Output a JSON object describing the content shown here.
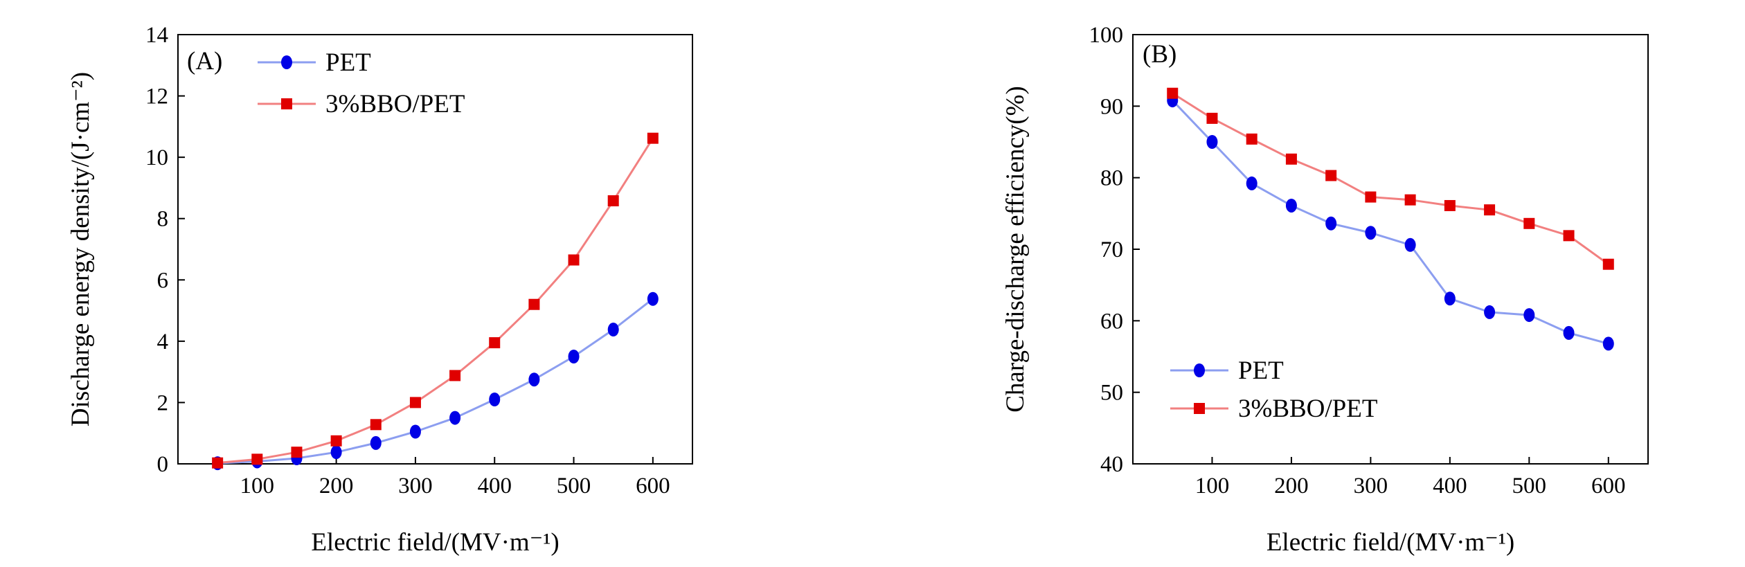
{
  "chart_data": [
    {
      "type": "line",
      "panel_tag": "(A)",
      "xlabel": "Electric field/(MV·m⁻¹)",
      "ylabel": "Discharge energy density/(J·cm⁻²)",
      "xlim": [
        0,
        650
      ],
      "ylim": [
        0,
        14
      ],
      "xticks": [
        100,
        200,
        300,
        400,
        500,
        600
      ],
      "yticks": [
        0,
        2,
        4,
        6,
        8,
        10,
        12,
        14
      ],
      "grid": false,
      "legend": "top-left",
      "series": [
        {
          "name": "PET",
          "color": "#8c9ef0",
          "marker": "circle",
          "marker_color": "#0000e6",
          "x": [
            50,
            100,
            150,
            200,
            250,
            300,
            350,
            400,
            450,
            500,
            550,
            600
          ],
          "y": [
            0.02,
            0.08,
            0.18,
            0.38,
            0.68,
            1.05,
            1.5,
            2.1,
            2.75,
            3.5,
            4.38,
            5.38
          ]
        },
        {
          "name": "3%BBO/PET",
          "color": "#f28080",
          "marker": "square",
          "marker_color": "#e00000",
          "x": [
            50,
            100,
            150,
            200,
            250,
            300,
            350,
            400,
            450,
            500,
            550,
            600
          ],
          "y": [
            0.03,
            0.15,
            0.38,
            0.75,
            1.28,
            2.0,
            2.88,
            3.95,
            5.2,
            6.65,
            8.58,
            10.62
          ]
        }
      ]
    },
    {
      "type": "line",
      "panel_tag": "(B)",
      "xlabel": "Electric field/(MV·m⁻¹)",
      "ylabel": "Charge-discharge efficiency(%)",
      "xlim": [
        0,
        650
      ],
      "ylim": [
        40,
        100
      ],
      "xticks": [
        100,
        200,
        300,
        400,
        500,
        600
      ],
      "yticks": [
        40,
        50,
        60,
        70,
        80,
        90,
        100
      ],
      "grid": false,
      "legend": "bottom-left",
      "series": [
        {
          "name": "PET",
          "color": "#8c9ef0",
          "marker": "circle",
          "marker_color": "#0000e6",
          "x": [
            50,
            100,
            150,
            200,
            250,
            300,
            350,
            400,
            450,
            500,
            550,
            600
          ],
          "y": [
            90.8,
            85.0,
            79.2,
            76.1,
            73.6,
            72.3,
            70.6,
            63.1,
            61.2,
            60.8,
            58.3,
            56.8
          ]
        },
        {
          "name": "3%BBO/PET",
          "color": "#f28080",
          "marker": "square",
          "marker_color": "#e00000",
          "x": [
            50,
            100,
            150,
            200,
            250,
            300,
            350,
            400,
            450,
            500,
            550,
            600
          ],
          "y": [
            91.8,
            88.3,
            85.4,
            82.6,
            80.3,
            77.3,
            76.9,
            76.1,
            75.5,
            73.6,
            71.9,
            67.9
          ]
        }
      ]
    }
  ]
}
